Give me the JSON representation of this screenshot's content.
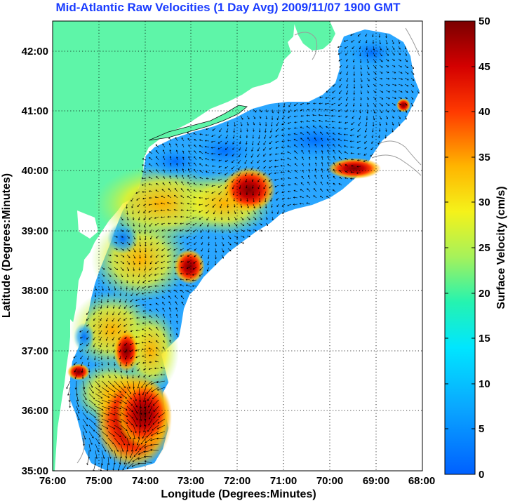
{
  "title": "Mid-Atlantic Raw Velocities (1 Day Avg) 2009/11/07 1900 GMT",
  "map": {
    "x_label": "Longitude (Degrees:Minutes)",
    "y_label": "Latitude (Degrees:Minutes)",
    "lon_ticks": [
      "76:00",
      "75:00",
      "74:00",
      "73:00",
      "72:00",
      "71:00",
      "70:00",
      "69:00",
      "68:00"
    ],
    "lat_ticks": [
      "42:00",
      "41:00",
      "40:00",
      "39:00",
      "38:00",
      "37:00",
      "36:00",
      "35:00"
    ],
    "lon_range": [
      -76,
      -68
    ],
    "lat_range": [
      35,
      42.5
    ],
    "colors": {
      "land": "#5ef5a8",
      "water": "#ffffff",
      "grid": "#000000",
      "arrows": "#000000"
    }
  },
  "colorbar": {
    "label": "Surface Velocity (cm/s)",
    "ticks": [
      "0",
      "5",
      "10",
      "15",
      "20",
      "25",
      "30",
      "35",
      "40",
      "45",
      "50"
    ],
    "range": [
      0,
      50
    ],
    "scale": "jet"
  }
}
